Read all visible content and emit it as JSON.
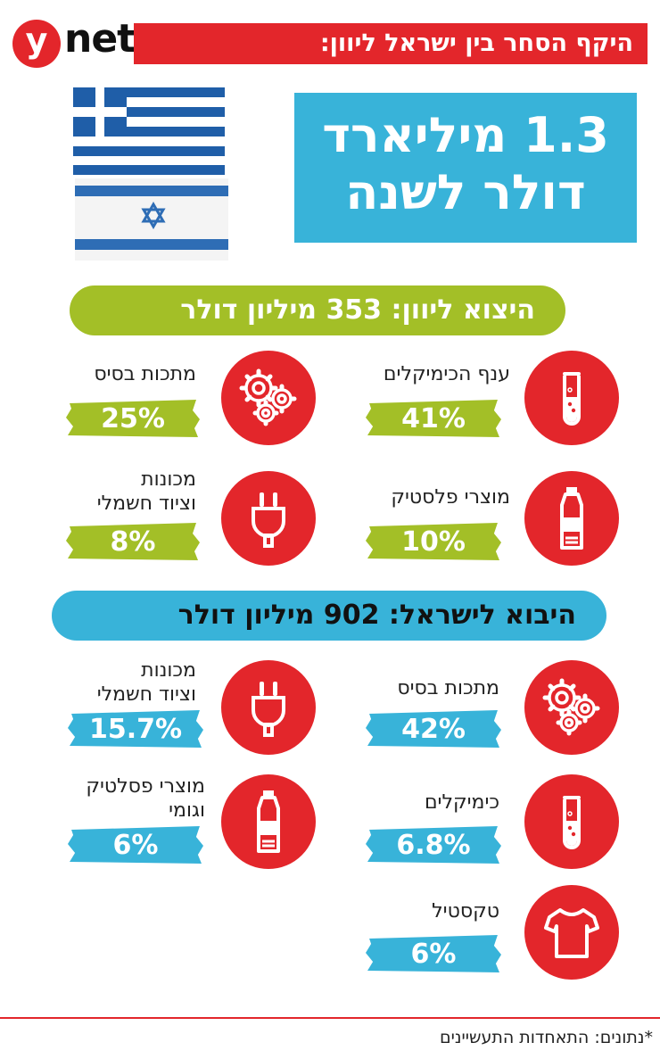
{
  "header": {
    "logo_y": "y",
    "logo_net": "net",
    "title": "היקף הסחר בין ישראל ליוון:"
  },
  "headline": {
    "line1": "1.3 מיליארד",
    "line2": "דולר לשנה"
  },
  "export": {
    "title": "היצוא ליוון: 353 מיליון דולר",
    "color": "#a3bf27",
    "items": [
      {
        "label": "ענף הכימיקלים",
        "value": "41%",
        "icon": "test-tube-icon"
      },
      {
        "label": "מתכות בסיס",
        "value": "25%",
        "icon": "gears-icon"
      },
      {
        "label": "מוצרי פלסטיק",
        "value": "10%",
        "icon": "bottle-icon"
      },
      {
        "label_line1": "מכונות",
        "label_line2": "וציוד חשמלי",
        "value": "8%",
        "icon": "plug-icon"
      }
    ]
  },
  "import": {
    "title": "היבוא לישראל: 902 מיליון דולר",
    "color": "#38b3d9",
    "items": [
      {
        "label": "מתכות בסיס",
        "value": "42%",
        "icon": "gears-icon"
      },
      {
        "label_line1": "מכונות",
        "label_line2": "וציוד חשמלי",
        "value": "15.7%",
        "icon": "plug-icon"
      },
      {
        "label": "כימיקלים",
        "value": "6.8%",
        "icon": "test-tube-icon"
      },
      {
        "label_line1": "מוצרי פסלטיק",
        "label_line2": "וגומי",
        "value": "6%",
        "icon": "bottle-icon"
      },
      {
        "label": "טקסטיל",
        "value": "6%",
        "icon": "tshirt-icon"
      }
    ]
  },
  "footer": {
    "source": "*נתונים: התאחדות התעשיינים"
  },
  "colors": {
    "red": "#e3262b",
    "green": "#a3bf27",
    "blue": "#38b3d9"
  }
}
